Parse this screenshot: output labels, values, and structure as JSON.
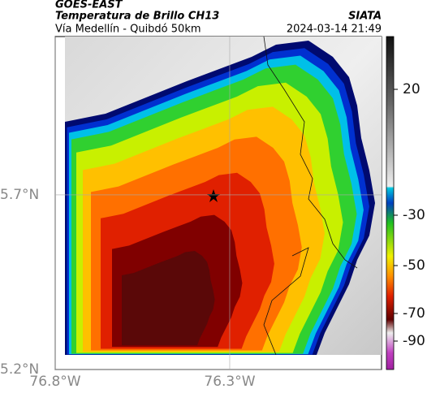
{
  "header": {
    "source": "GOES-EAST",
    "title": "Temperatura de Brillo CH13",
    "agency": "SIATA",
    "subtitle": "Vía Medellín - Quibdó 50km",
    "timestamp": "2024-03-14 21:49"
  },
  "map": {
    "xlim": [
      -76.8,
      -75.865
    ],
    "ylim": [
      5.2,
      6.153
    ],
    "xticks": [
      {
        "value": -76.8,
        "label": "76.8°W"
      },
      {
        "value": -76.3,
        "label": "76.3°W"
      }
    ],
    "yticks": [
      {
        "value": 5.2,
        "label": "5.2°N"
      },
      {
        "value": 5.7,
        "label": "5.7°N"
      }
    ]
  },
  "colorbar": {
    "ticks": [
      20,
      -30,
      -50,
      -70,
      -90
    ]
  }
}
